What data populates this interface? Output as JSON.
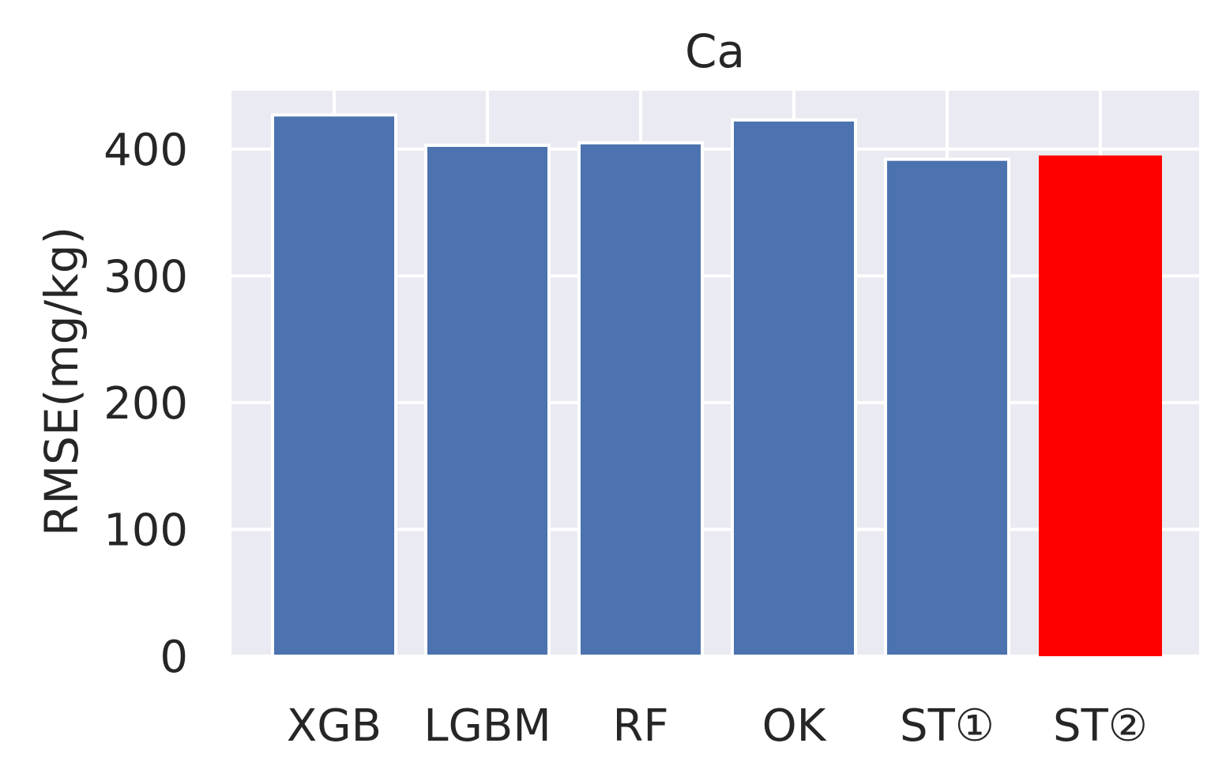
{
  "chart_data": {
    "type": "bar",
    "title": "Ca",
    "xlabel": "",
    "ylabel": "RMSE(mg/kg)",
    "categories": [
      "XGB",
      "LGBM",
      "RF",
      "OK",
      "ST①",
      "ST②"
    ],
    "values": [
      427,
      403,
      405,
      423,
      392,
      395
    ],
    "yticks": [
      "0",
      "100",
      "200",
      "300",
      "400"
    ],
    "ylim": [
      0,
      446
    ],
    "grid": true,
    "bar_color": "#4c72b0",
    "highlight_color": "#ff0000",
    "highlight_index": 5,
    "background_color": "#eaeaf2"
  }
}
